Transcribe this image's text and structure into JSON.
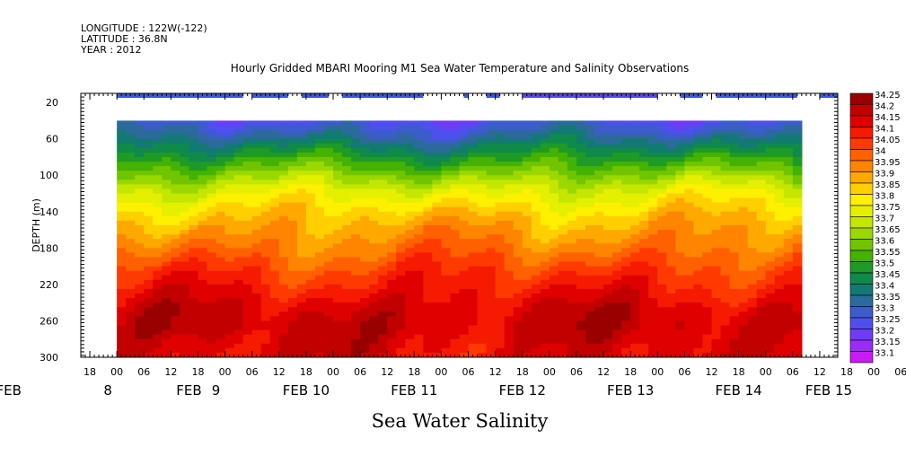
{
  "header": {
    "longitude": "LONGITUDE : 122W(-122)",
    "latitude": "LATITUDE : 36.8N",
    "year": "YEAR : 2012"
  },
  "chart_data": {
    "type": "heatmap",
    "title": "Hourly Gridded MBARI Mooring M1 Sea Water Temperature and Salinity Observations",
    "xlabel": "Sea Water Salinity",
    "ylabel": "DEPTH (m)",
    "ylim": [
      300,
      10
    ],
    "yticks": [
      "20",
      "60",
      "100",
      "140",
      "180",
      "220",
      "260",
      "300"
    ],
    "ytick_values": [
      20,
      60,
      100,
      140,
      180,
      220,
      260,
      300
    ],
    "x_time_labels": [
      {
        "h": -6,
        "t": "18"
      },
      {
        "h": 0,
        "t": "00"
      },
      {
        "h": 6,
        "t": "06"
      },
      {
        "h": 12,
        "t": "12"
      },
      {
        "h": 18,
        "t": "18"
      },
      {
        "h": 24,
        "t": "00"
      },
      {
        "h": 30,
        "t": "06"
      },
      {
        "h": 36,
        "t": "12"
      },
      {
        "h": 42,
        "t": "18"
      },
      {
        "h": 48,
        "t": "00"
      },
      {
        "h": 54,
        "t": "06"
      },
      {
        "h": 60,
        "t": "12"
      },
      {
        "h": 66,
        "t": "18"
      },
      {
        "h": 72,
        "t": "00"
      },
      {
        "h": 78,
        "t": "06"
      },
      {
        "h": 84,
        "t": "12"
      },
      {
        "h": 90,
        "t": "18"
      },
      {
        "h": 96,
        "t": "00"
      },
      {
        "h": 102,
        "t": "06"
      },
      {
        "h": 108,
        "t": "12"
      },
      {
        "h": 114,
        "t": "18"
      },
      {
        "h": 120,
        "t": "00"
      },
      {
        "h": 126,
        "t": "06"
      },
      {
        "h": 132,
        "t": "12"
      },
      {
        "h": 138,
        "t": "18"
      },
      {
        "h": 144,
        "t": "00"
      },
      {
        "h": 150,
        "t": "06"
      },
      {
        "h": 156,
        "t": "12"
      },
      {
        "h": 162,
        "t": "18"
      },
      {
        "h": 168,
        "t": "00"
      },
      {
        "h": 174,
        "t": "06"
      },
      {
        "h": 180,
        "t": "12"
      }
    ],
    "x_day_labels": [
      {
        "h": -24,
        "t": "FEB"
      },
      {
        "h": -2,
        "t": "8"
      },
      {
        "h": 16,
        "t": "FEB"
      },
      {
        "h": 22,
        "t": "9"
      },
      {
        "h": 42,
        "t": "FEB 10"
      },
      {
        "h": 66,
        "t": "FEB 11"
      },
      {
        "h": 90,
        "t": "FEB 12"
      },
      {
        "h": 114,
        "t": "FEB 13"
      },
      {
        "h": 138,
        "t": "FEB 14"
      },
      {
        "h": 158,
        "t": "FEB 15"
      }
    ],
    "xlim_hours": [
      -8,
      160
    ],
    "data_extent_hours": [
      0,
      152
    ],
    "data_extent_depth": [
      40,
      300
    ],
    "surface_band_depth": 10,
    "surface_segments_hours": [
      [
        0,
        28
      ],
      [
        30,
        38
      ],
      [
        41,
        47
      ],
      [
        50,
        68
      ],
      [
        77,
        78
      ],
      [
        82,
        85
      ],
      [
        90,
        120
      ],
      [
        125,
        130
      ],
      [
        133,
        151
      ],
      [
        156,
        160
      ]
    ],
    "legend_levels": [
      "34.25",
      "34.2",
      "34.15",
      "34.1",
      "34.05",
      "34",
      "33.95",
      "33.9",
      "33.85",
      "33.8",
      "33.75",
      "33.7",
      "33.65",
      "33.6",
      "33.55",
      "33.5",
      "33.45",
      "33.4",
      "33.35",
      "33.3",
      "33.25",
      "33.2",
      "33.15",
      "33.1"
    ],
    "legend_colors": [
      "#990000",
      "#c20000",
      "#e00000",
      "#f51a00",
      "#ff3a00",
      "#ff6000",
      "#ff8400",
      "#ffa800",
      "#ffcf00",
      "#fff000",
      "#e4f000",
      "#c4e600",
      "#9ad800",
      "#70c500",
      "#44b200",
      "#1f9a26",
      "#108a4a",
      "#127a72",
      "#2c6a9c",
      "#3c5ccb",
      "#4f4ff0",
      "#6f3cf5",
      "#9a2cf5",
      "#c81cf5"
    ],
    "profile_depths": [
      40,
      55,
      70,
      85,
      100,
      115,
      130,
      145,
      160,
      175,
      190,
      205,
      220,
      235,
      250,
      265,
      280,
      300
    ],
    "profile_salinity": [
      33.28,
      33.36,
      33.46,
      33.56,
      33.66,
      33.76,
      33.83,
      33.89,
      33.94,
      33.98,
      34.03,
      34.08,
      34.12,
      34.16,
      34.2,
      34.21,
      34.19,
      34.17
    ]
  }
}
